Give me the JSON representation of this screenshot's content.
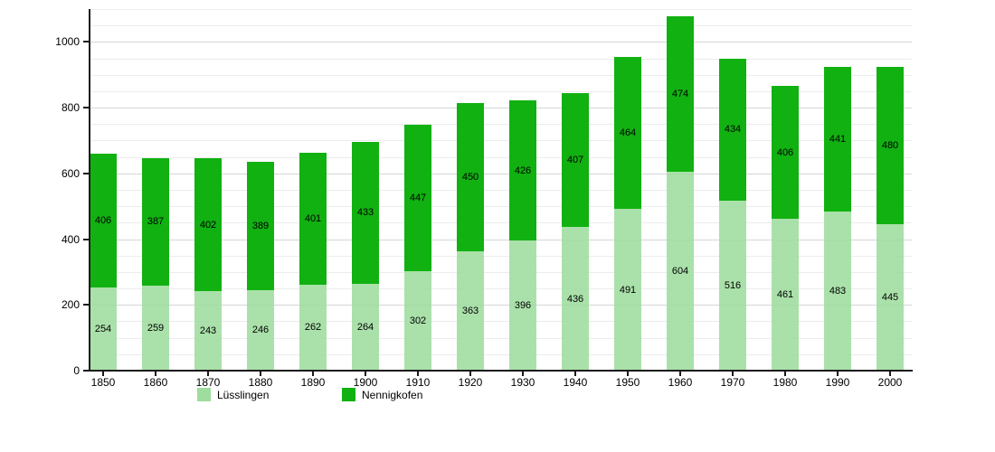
{
  "chart_data": {
    "type": "bar",
    "stacked": true,
    "title": "",
    "xlabel": "",
    "ylabel": "",
    "categories": [
      "1850",
      "1860",
      "1870",
      "1880",
      "1890",
      "1900",
      "1910",
      "1920",
      "1930",
      "1940",
      "1950",
      "1960",
      "1970",
      "1980",
      "1990",
      "2000"
    ],
    "series": [
      {
        "name": "Lüsslingen",
        "color": "#9edd9e",
        "values": [
          254,
          259,
          243,
          246,
          262,
          264,
          302,
          363,
          396,
          436,
          491,
          604,
          516,
          461,
          483,
          445
        ]
      },
      {
        "name": "Nennigkofen",
        "color": "#11b111",
        "values": [
          406,
          387,
          402,
          389,
          401,
          433,
          447,
          450,
          426,
          407,
          464,
          474,
          434,
          406,
          441,
          480
        ]
      }
    ],
    "ylim": [
      0,
      1100
    ],
    "yticks": [
      0,
      200,
      400,
      600,
      800,
      1000
    ],
    "minor_grid_step": 50,
    "grid": true,
    "legend_position": "bottom",
    "value_labels": "inside-center"
  },
  "colors": {
    "background": "#ffffff",
    "axis": "#1a1a1a",
    "grid_minor": "#ececec",
    "grid_major": "#d6d6d6",
    "text": "#000000"
  },
  "legend": {
    "items": [
      {
        "label": "Lüsslingen"
      },
      {
        "label": "Nennigkofen"
      }
    ]
  }
}
